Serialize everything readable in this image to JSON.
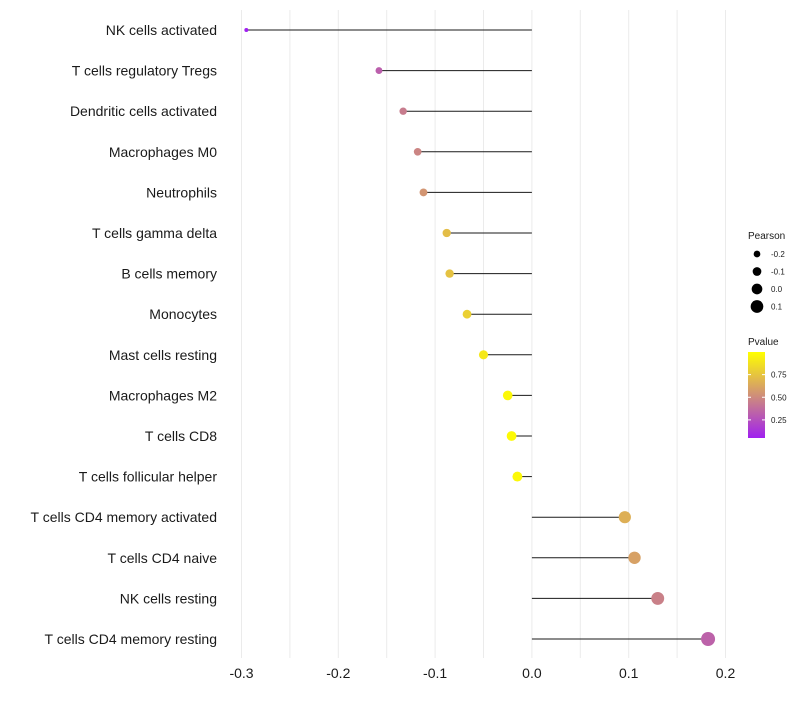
{
  "chart_data": {
    "type": "lollipop",
    "title": "",
    "xlabel": "",
    "ylabel": "",
    "xlim": [
      -0.3,
      0.2
    ],
    "x_ticks": [
      -0.3,
      -0.2,
      -0.1,
      0.0,
      0.1,
      0.2
    ],
    "x_tick_labels": [
      "-0.3",
      "-0.2",
      "-0.1",
      "0.0",
      "0.1",
      "0.2"
    ],
    "grid": true,
    "categories": [
      "NK cells activated",
      "T cells regulatory  Tregs",
      "Dendritic cells activated",
      "Macrophages M0",
      "Neutrophils",
      "T cells gamma delta",
      "B cells memory",
      "Monocytes",
      "Mast cells resting",
      "Macrophages M2",
      "T cells CD8",
      "T cells follicular helper",
      "T cells CD4 memory activated",
      "T cells CD4 naive",
      "NK cells resting",
      "T cells CD4 memory resting"
    ],
    "pearson": [
      -0.295,
      -0.158,
      -0.133,
      -0.118,
      -0.112,
      -0.088,
      -0.085,
      -0.067,
      -0.05,
      -0.025,
      -0.021,
      -0.015,
      0.096,
      0.106,
      0.13,
      0.182
    ],
    "pvalue": [
      0.02,
      0.32,
      0.44,
      0.48,
      0.55,
      0.72,
      0.74,
      0.8,
      0.9,
      0.97,
      0.98,
      0.97,
      0.66,
      0.6,
      0.46,
      0.33
    ],
    "size_legend": {
      "title": "Pearson",
      "values": [
        -0.2,
        -0.1,
        0.0,
        0.1
      ],
      "labels": [
        "-0.2",
        "-0.1",
        "0.0",
        "0.1"
      ]
    },
    "color_legend": {
      "title": "Pvalue",
      "range": [
        0.05,
        1.0
      ],
      "ticks": [
        0.25,
        0.5,
        0.75
      ],
      "tick_labels": [
        "0.25",
        "0.50",
        "0.75"
      ],
      "low_color": "#A020F0",
      "high_color": "#FFFF00"
    },
    "legend_position": "right"
  }
}
